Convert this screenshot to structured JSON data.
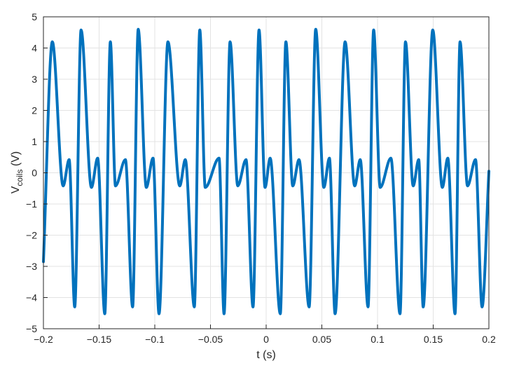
{
  "chart_data": {
    "type": "line",
    "title": "",
    "xlabel": "t (s)",
    "ylabel_main": "V",
    "ylabel_sub": "coils",
    "ylabel_unit": " (V)",
    "xlim": [
      -0.2,
      0.2
    ],
    "ylim": [
      -5,
      5
    ],
    "grid": true,
    "line_color": "#0072BD",
    "x_ticks": [
      -0.2,
      -0.15,
      -0.1,
      -0.05,
      0,
      0.05,
      0.1,
      0.15,
      0.2
    ],
    "x_tick_labels": [
      "−0.2",
      "−0.15",
      "−0.1",
      "−0.05",
      "0",
      "0.05",
      "0.1",
      "0.15",
      "0.2"
    ],
    "y_ticks": [
      -5,
      -4,
      -3,
      -2,
      -1,
      0,
      1,
      2,
      3,
      4,
      5
    ],
    "y_tick_labels": [
      "−5",
      "−4",
      "−3",
      "−2",
      "−1",
      "0",
      "1",
      "2",
      "3",
      "4",
      "5"
    ],
    "series": [
      {
        "x": [
          -0.2,
          -0.192,
          -0.1823,
          -0.1769,
          -0.1719,
          -0.1662,
          -0.1569,
          -0.1513,
          -0.1449,
          -0.1399,
          -0.1353,
          -0.1264,
          -0.1199,
          -0.1149,
          -0.1076,
          -0.1016,
          -0.0962,
          -0.0882,
          -0.0776,
          -0.0726,
          -0.0645,
          -0.0596,
          -0.0547,
          -0.0423,
          -0.0378,
          -0.0324,
          -0.0255,
          -0.0181,
          -0.0118,
          -0.0064,
          -0.001,
          0.0036,
          0.0127,
          0.0177,
          0.0239,
          0.0295,
          0.0386,
          0.0445,
          0.0518,
          0.0568,
          0.0619,
          0.0709,
          0.0795,
          0.0845,
          0.0915,
          0.0965,
          0.1024,
          0.112,
          0.1202,
          0.1251,
          0.132,
          0.137,
          0.141,
          0.1496,
          0.1582,
          0.1631,
          0.1696,
          0.1741,
          0.1808,
          0.188,
          0.1939,
          0.2
        ],
        "y": [
          -2.85,
          4.2,
          -0.42,
          0.42,
          -4.3,
          4.58,
          -0.47,
          0.47,
          -4.52,
          4.2,
          -0.42,
          0.42,
          -4.3,
          4.6,
          -0.47,
          0.47,
          -4.52,
          4.2,
          -0.42,
          0.42,
          -4.3,
          4.58,
          -0.47,
          0.47,
          -4.52,
          4.2,
          -0.42,
          0.42,
          -4.3,
          4.58,
          -0.47,
          0.47,
          -4.52,
          4.2,
          -0.42,
          0.42,
          -4.3,
          4.6,
          -0.47,
          0.47,
          -4.52,
          4.2,
          -0.42,
          0.42,
          -4.3,
          4.58,
          -0.47,
          0.47,
          -4.52,
          4.2,
          -0.42,
          0.42,
          -4.3,
          4.58,
          -0.47,
          0.47,
          -4.52,
          4.2,
          -0.42,
          0.42,
          -4.3,
          0.05
        ]
      }
    ]
  }
}
